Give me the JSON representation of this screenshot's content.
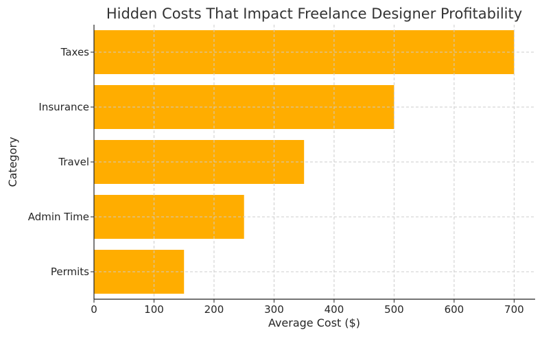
{
  "chart_data": {
    "type": "bar",
    "orientation": "horizontal",
    "title": "Hidden Costs That Impact Freelance Designer Profitability",
    "xlabel": "Average Cost ($)",
    "ylabel": "Category",
    "categories": [
      "Taxes",
      "Insurance",
      "Travel",
      "Admin Time",
      "Permits"
    ],
    "values": [
      700,
      500,
      350,
      250,
      150
    ],
    "xlim": [
      0,
      735
    ],
    "xticks": [
      0,
      100,
      200,
      300,
      400,
      500,
      600,
      700
    ],
    "grid": true,
    "bar_color": "#FFAD00"
  }
}
